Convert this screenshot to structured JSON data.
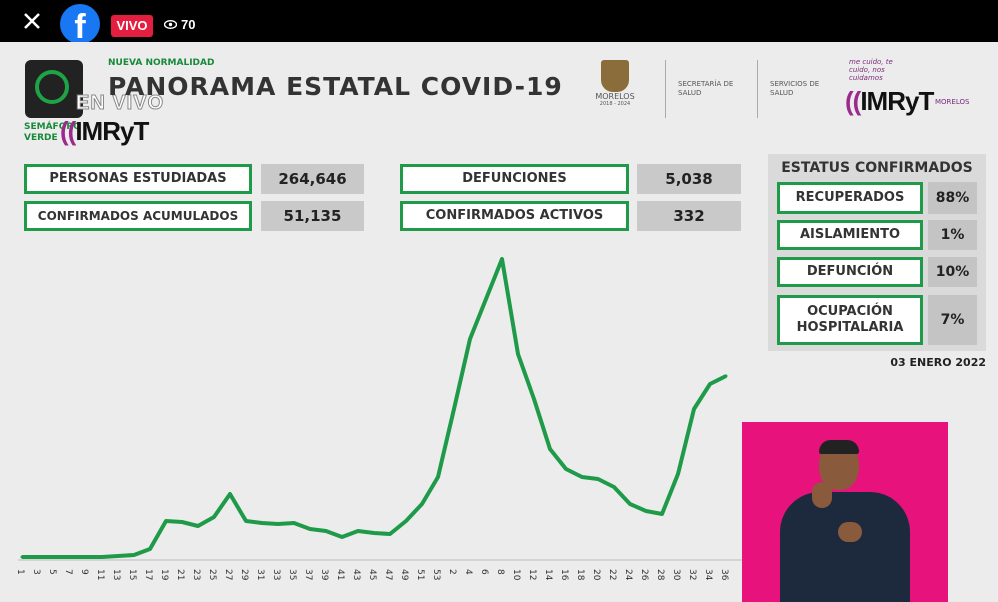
{
  "player": {
    "live_badge": "VIVO",
    "viewer_count": "70",
    "icons": {
      "close": "close-icon",
      "brand": "facebook-icon",
      "viewers": "eye-icon"
    }
  },
  "broadcast": {
    "overlay_text": "EN VIVO",
    "subtitle": "NUEVA NORMALIDAD",
    "title": "PANORAMA ESTATAL COVID-19",
    "semaforo_label": "SEMÁFORO VERDE",
    "brand_left": "IMRyT",
    "brand_right": "IMRyT",
    "logos": {
      "morelos": "MORELOS",
      "morelos_years": "2018 - 2024",
      "secretaria": "SECRETARÍA DE SALUD",
      "servicios": "SERVICIOS DE SALUD",
      "slogan": "me cuido, te cuido, nos cuidamos",
      "morelos_right": "MORELOS"
    },
    "stats": [
      {
        "label": "PERSONAS ESTUDIADAS",
        "value": "264,646"
      },
      {
        "label": "CONFIRMADOS ACUMULADOS",
        "value": "51,135"
      },
      {
        "label": "DEFUNCIONES",
        "value": "5,038"
      },
      {
        "label": "CONFIRMADOS ACTIVOS",
        "value": "332"
      }
    ],
    "estatus": {
      "title": "ESTATUS CONFIRMADOS",
      "items": [
        {
          "label": "RECUPERADOS",
          "value": "88%"
        },
        {
          "label": "AISLAMIENTO",
          "value": "1%"
        },
        {
          "label": "DEFUNCIÓN",
          "value": "10%"
        },
        {
          "label": "OCUPACIÓN HOSPITALARIA",
          "value": "7%"
        }
      ]
    },
    "date": "03 ENERO 2022",
    "colors": {
      "accent_green": "#1f9a48",
      "live_red": "#e41e3f",
      "interpreter_bg": "#e7127b"
    }
  },
  "chart_data": {
    "type": "line",
    "title": "",
    "xlabel": "",
    "ylabel": "",
    "x": [
      "1",
      "3",
      "5",
      "7",
      "9",
      "11",
      "13",
      "15",
      "17",
      "19",
      "21",
      "23",
      "25",
      "27",
      "29",
      "31",
      "33",
      "35",
      "37",
      "39",
      "41",
      "43",
      "45",
      "47",
      "49",
      "51",
      "53",
      "2",
      "4",
      "6",
      "8",
      "10",
      "12",
      "14",
      "16",
      "18",
      "20",
      "22",
      "24",
      "26",
      "28",
      "30",
      "32",
      "34",
      "36"
    ],
    "series": [
      {
        "name": "",
        "values": [
          2,
          2,
          2,
          2,
          2,
          2,
          3,
          4,
          10,
          38,
          37,
          33,
          42,
          65,
          38,
          36,
          35,
          36,
          30,
          28,
          22,
          28,
          26,
          25,
          38,
          55,
          82,
          150,
          220,
          260,
          300,
          205,
          160,
          110,
          90,
          82,
          80,
          72,
          55,
          48,
          45,
          85,
          150,
          175,
          183
        ]
      }
    ],
    "grid": false,
    "legend": "none",
    "color": "#1f9a48"
  }
}
